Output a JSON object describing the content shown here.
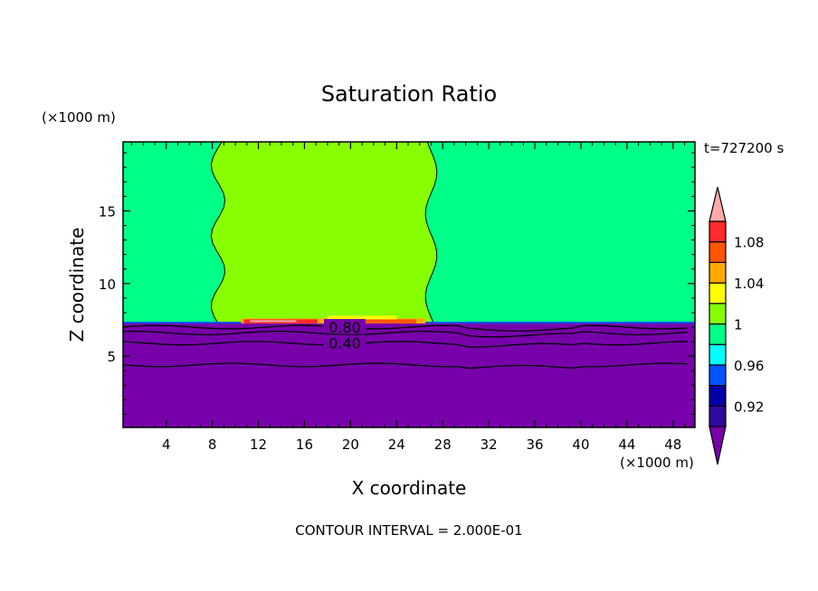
{
  "chart_data": {
    "type": "heatmap",
    "title": "Saturation Ratio",
    "xlabel": "X coordinate",
    "ylabel": "Z coordinate",
    "x_units": "(×1000 m)",
    "y_units": "(×1000 m)",
    "time_label": "t=727200 s",
    "footer": "CONTOUR INTERVAL = 2.000E-01",
    "xlim": [
      0.25,
      49.9
    ],
    "ylim": [
      0.1,
      19.75
    ],
    "x_ticks": [
      4,
      8,
      12,
      16,
      20,
      24,
      28,
      32,
      36,
      40,
      44,
      48
    ],
    "y_ticks": [
      5,
      10,
      15
    ],
    "colorbar": {
      "levels": [
        0.9,
        0.92,
        0.94,
        0.96,
        0.98,
        1.0,
        1.02,
        1.04,
        1.06,
        1.08,
        1.1
      ],
      "tick_labels": [
        "0.92",
        "0.96",
        "1",
        "1.04",
        "1.08"
      ],
      "tick_values": [
        0.92,
        0.96,
        1.0,
        1.04,
        1.08
      ],
      "colors": [
        "#2f0aa0",
        "#0000a8",
        "#0055ff",
        "#00ffff",
        "#00ff88",
        "#88ff00",
        "#ffff00",
        "#ffaa00",
        "#ff5500",
        "#ff2a2a"
      ],
      "under_color": "#7700aa",
      "over_color": "#ffaaaa"
    },
    "regions": [
      {
        "name": "dry-layer",
        "value": "<0.9",
        "z_top": 7.25
      },
      {
        "name": "background",
        "value": "0.98-1.00",
        "z_range": [
          7.25,
          19.75
        ]
      },
      {
        "name": "moist-column",
        "value": "1.00-1.02",
        "x_range": [
          8.5,
          27.5
        ],
        "z_range": [
          7.25,
          19.75
        ]
      },
      {
        "name": "supersaturated-strip",
        "value": ">1.04",
        "x_range": [
          10.5,
          26.5
        ],
        "z_range": [
          7.2,
          7.6
        ]
      }
    ],
    "contours": [
      {
        "value": 0.8,
        "label": "0.80",
        "z": 7.0
      },
      {
        "value": 0.6,
        "label": "",
        "z": 6.6
      },
      {
        "value": 0.4,
        "label": "0.40",
        "z": 5.9
      },
      {
        "value": 0.2,
        "label": "",
        "z": 4.4
      }
    ]
  }
}
